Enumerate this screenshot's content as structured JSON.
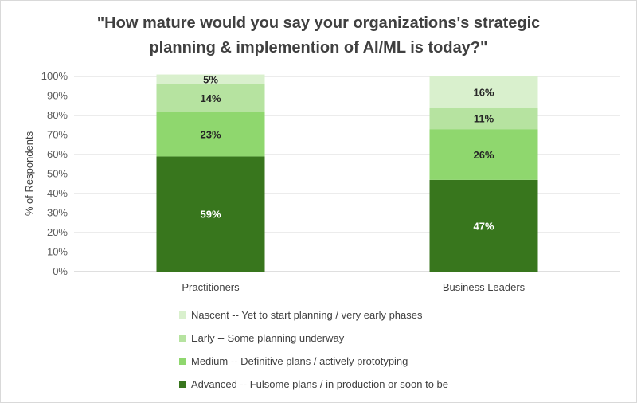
{
  "chart_data": {
    "type": "bar",
    "stacked": true,
    "title": "\"How mature would you say your organizations's strategic planning & implemention of AI/ML is today?\"",
    "title_lines": [
      "\"How mature would you say your organizations's strategic",
      "planning & implemention of AI/ML is today?\""
    ],
    "xlabel": "",
    "ylabel": "% of Respondents",
    "ylim": [
      0,
      100
    ],
    "yticks": [
      "0%",
      "10%",
      "20%",
      "30%",
      "40%",
      "50%",
      "60%",
      "70%",
      "80%",
      "90%",
      "100%"
    ],
    "grid": true,
    "legend_position": "bottom",
    "categories": [
      "Practitioners",
      "Business Leaders"
    ],
    "series": [
      {
        "name": "Advanced -- Fulsome plans / in production or soon to be",
        "values": [
          59,
          47
        ],
        "labels": [
          "59%",
          "47%"
        ],
        "color": "#38761d",
        "label_color": "#ffffff"
      },
      {
        "name": "Medium -- Definitive plans / actively prototyping",
        "values": [
          23,
          26
        ],
        "labels": [
          "23%",
          "26%"
        ],
        "color": "#8fd76e",
        "label_color": "#262626"
      },
      {
        "name": "Early -- Some planning underway",
        "values": [
          14,
          11
        ],
        "labels": [
          "14%",
          "11%"
        ],
        "color": "#b6e3a0",
        "label_color": "#262626"
      },
      {
        "name": "Nascent -- Yet to start planning / very early phases",
        "values": [
          5,
          16
        ],
        "labels": [
          "5%",
          "16%"
        ],
        "color": "#d9f0cd",
        "label_color": "#262626"
      }
    ],
    "legend_order": [
      3,
      2,
      1,
      0
    ]
  }
}
